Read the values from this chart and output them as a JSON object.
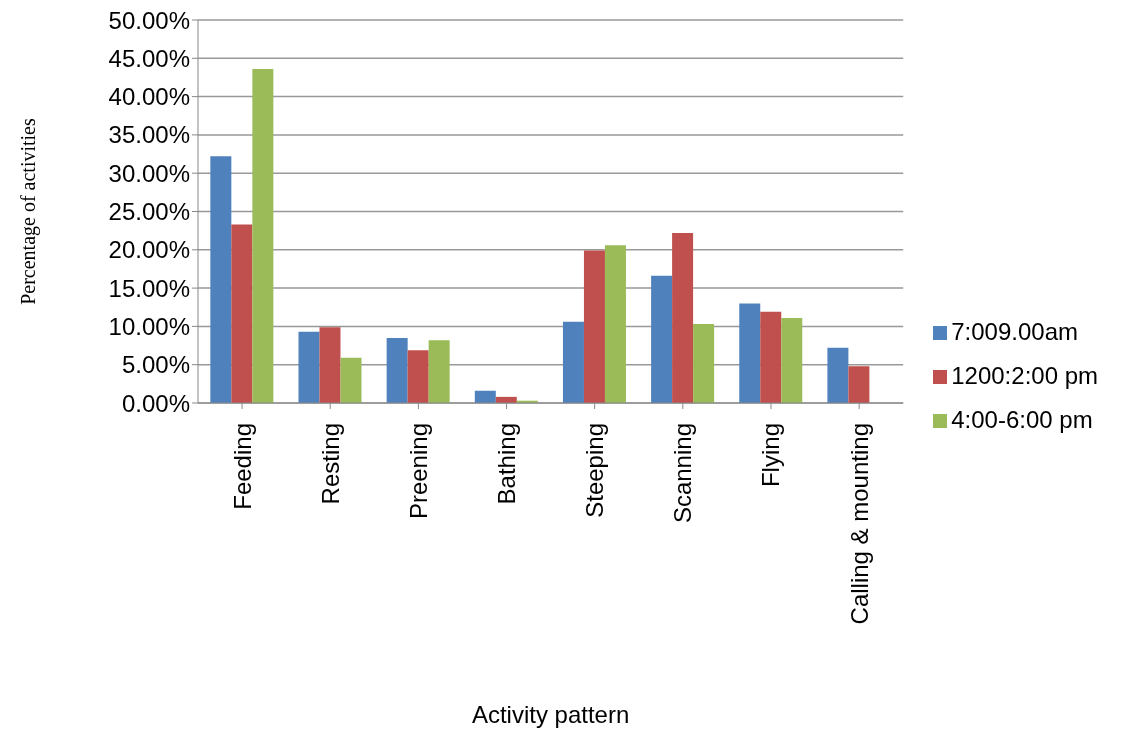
{
  "chart_data": {
    "type": "bar",
    "xlabel": "Activity pattern",
    "ylabel": "Percentage of activities",
    "categories": [
      "Feeding",
      "Resting",
      "Preening",
      "Bathing",
      "Steeping",
      "Scanning",
      "Flying",
      "Calling & mounting"
    ],
    "series": [
      {
        "name": "7:009.00am",
        "color": "#4f81bd",
        "values": [
          32.2,
          9.3,
          8.5,
          1.6,
          10.6,
          16.6,
          13.0,
          7.2
        ]
      },
      {
        "name": "1200:2:00 pm",
        "color": "#c0504d",
        "values": [
          23.3,
          9.9,
          6.9,
          0.8,
          19.9,
          22.2,
          11.9,
          4.8
        ]
      },
      {
        "name": "4:00-6:00 pm",
        "color": "#9bbb59",
        "values": [
          43.6,
          5.9,
          8.2,
          0.3,
          20.6,
          10.3,
          11.1,
          0
        ]
      }
    ],
    "ylim": [
      0,
      50
    ],
    "yticks": [
      {
        "value": 0,
        "label": "0.00%"
      },
      {
        "value": 5,
        "label": "5.00%"
      },
      {
        "value": 10,
        "label": "10.00%"
      },
      {
        "value": 15,
        "label": "15.00%"
      },
      {
        "value": 20,
        "label": "20.00%"
      },
      {
        "value": 25,
        "label": "25.00%"
      },
      {
        "value": 30,
        "label": "30.00%"
      },
      {
        "value": 35,
        "label": "35.00%"
      },
      {
        "value": 40,
        "label": "40.00%"
      },
      {
        "value": 45,
        "label": "45.00%"
      },
      {
        "value": 50,
        "label": "50.00%"
      }
    ],
    "grid": "y",
    "legend": "right"
  }
}
